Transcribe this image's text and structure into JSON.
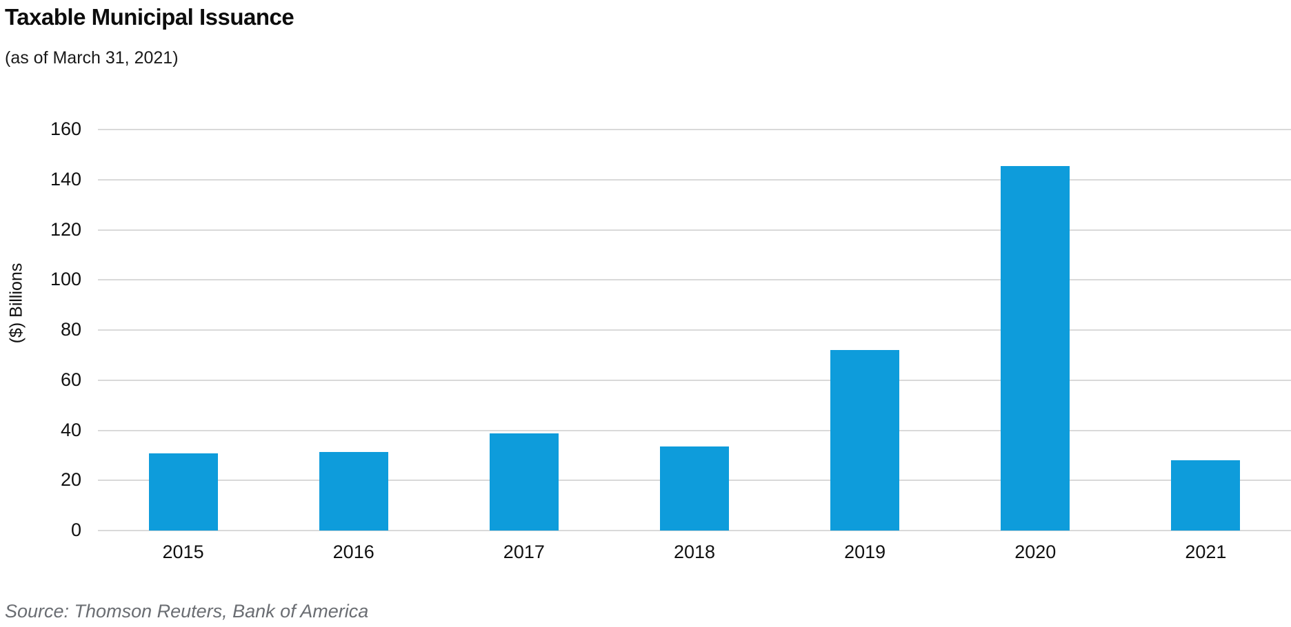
{
  "header": {
    "title": "Taxable Municipal Issuance",
    "subtitle": "(as of March 31, 2021)"
  },
  "source": "Source: Thomson Reuters, Bank of America",
  "colors": {
    "bar": "#0e9cdb",
    "gridline": "#d9d9d9",
    "text": "#111111",
    "source_text": "#6a6d72"
  },
  "chart_data": {
    "type": "bar",
    "title": "Taxable Municipal Issuance",
    "subtitle": "(as of March 31, 2021)",
    "categories": [
      "2015",
      "2016",
      "2017",
      "2018",
      "2019",
      "2020",
      "2021"
    ],
    "values": [
      30.7,
      31.4,
      38.9,
      33.5,
      72,
      145.5,
      28
    ],
    "xlabel": "",
    "ylabel": "($) Billions",
    "ylim": [
      0,
      160
    ],
    "yticks": [
      0,
      20,
      40,
      60,
      80,
      100,
      120,
      140,
      160
    ],
    "grid": true,
    "legend": false,
    "source": "Source: Thomson Reuters, Bank of America"
  }
}
